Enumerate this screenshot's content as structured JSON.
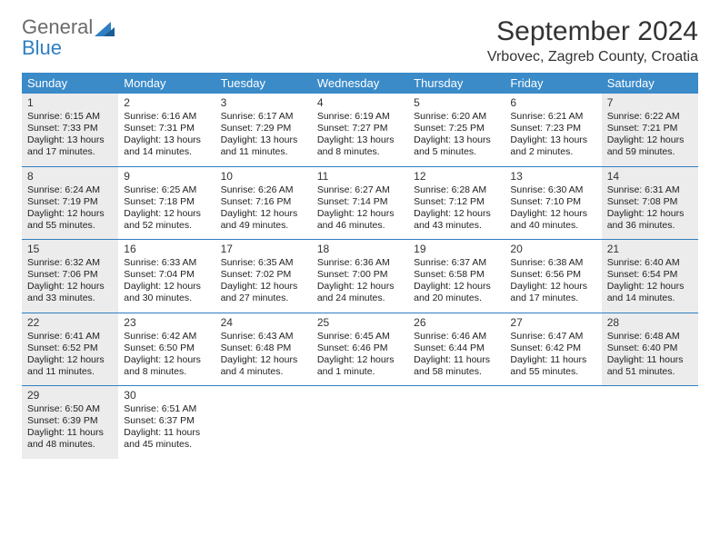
{
  "logo": {
    "line1": "General",
    "line2": "Blue"
  },
  "title": "September 2024",
  "location": "Vrbovec, Zagreb County, Croatia",
  "colors": {
    "header_bg": "#3b8bc9",
    "divider": "#2f7fc2",
    "shade": "#ececec",
    "logo_gray": "#6b6b6b",
    "logo_blue": "#2f7fc2"
  },
  "weekdays": [
    "Sunday",
    "Monday",
    "Tuesday",
    "Wednesday",
    "Thursday",
    "Friday",
    "Saturday"
  ],
  "weeks": [
    [
      {
        "num": "1",
        "shaded": true,
        "sunrise": "Sunrise: 6:15 AM",
        "sunset": "Sunset: 7:33 PM",
        "daylight1": "Daylight: 13 hours",
        "daylight2": "and 17 minutes."
      },
      {
        "num": "2",
        "shaded": false,
        "sunrise": "Sunrise: 6:16 AM",
        "sunset": "Sunset: 7:31 PM",
        "daylight1": "Daylight: 13 hours",
        "daylight2": "and 14 minutes."
      },
      {
        "num": "3",
        "shaded": false,
        "sunrise": "Sunrise: 6:17 AM",
        "sunset": "Sunset: 7:29 PM",
        "daylight1": "Daylight: 13 hours",
        "daylight2": "and 11 minutes."
      },
      {
        "num": "4",
        "shaded": false,
        "sunrise": "Sunrise: 6:19 AM",
        "sunset": "Sunset: 7:27 PM",
        "daylight1": "Daylight: 13 hours",
        "daylight2": "and 8 minutes."
      },
      {
        "num": "5",
        "shaded": false,
        "sunrise": "Sunrise: 6:20 AM",
        "sunset": "Sunset: 7:25 PM",
        "daylight1": "Daylight: 13 hours",
        "daylight2": "and 5 minutes."
      },
      {
        "num": "6",
        "shaded": false,
        "sunrise": "Sunrise: 6:21 AM",
        "sunset": "Sunset: 7:23 PM",
        "daylight1": "Daylight: 13 hours",
        "daylight2": "and 2 minutes."
      },
      {
        "num": "7",
        "shaded": true,
        "sunrise": "Sunrise: 6:22 AM",
        "sunset": "Sunset: 7:21 PM",
        "daylight1": "Daylight: 12 hours",
        "daylight2": "and 59 minutes."
      }
    ],
    [
      {
        "num": "8",
        "shaded": true,
        "sunrise": "Sunrise: 6:24 AM",
        "sunset": "Sunset: 7:19 PM",
        "daylight1": "Daylight: 12 hours",
        "daylight2": "and 55 minutes."
      },
      {
        "num": "9",
        "shaded": false,
        "sunrise": "Sunrise: 6:25 AM",
        "sunset": "Sunset: 7:18 PM",
        "daylight1": "Daylight: 12 hours",
        "daylight2": "and 52 minutes."
      },
      {
        "num": "10",
        "shaded": false,
        "sunrise": "Sunrise: 6:26 AM",
        "sunset": "Sunset: 7:16 PM",
        "daylight1": "Daylight: 12 hours",
        "daylight2": "and 49 minutes."
      },
      {
        "num": "11",
        "shaded": false,
        "sunrise": "Sunrise: 6:27 AM",
        "sunset": "Sunset: 7:14 PM",
        "daylight1": "Daylight: 12 hours",
        "daylight2": "and 46 minutes."
      },
      {
        "num": "12",
        "shaded": false,
        "sunrise": "Sunrise: 6:28 AM",
        "sunset": "Sunset: 7:12 PM",
        "daylight1": "Daylight: 12 hours",
        "daylight2": "and 43 minutes."
      },
      {
        "num": "13",
        "shaded": false,
        "sunrise": "Sunrise: 6:30 AM",
        "sunset": "Sunset: 7:10 PM",
        "daylight1": "Daylight: 12 hours",
        "daylight2": "and 40 minutes."
      },
      {
        "num": "14",
        "shaded": true,
        "sunrise": "Sunrise: 6:31 AM",
        "sunset": "Sunset: 7:08 PM",
        "daylight1": "Daylight: 12 hours",
        "daylight2": "and 36 minutes."
      }
    ],
    [
      {
        "num": "15",
        "shaded": true,
        "sunrise": "Sunrise: 6:32 AM",
        "sunset": "Sunset: 7:06 PM",
        "daylight1": "Daylight: 12 hours",
        "daylight2": "and 33 minutes."
      },
      {
        "num": "16",
        "shaded": false,
        "sunrise": "Sunrise: 6:33 AM",
        "sunset": "Sunset: 7:04 PM",
        "daylight1": "Daylight: 12 hours",
        "daylight2": "and 30 minutes."
      },
      {
        "num": "17",
        "shaded": false,
        "sunrise": "Sunrise: 6:35 AM",
        "sunset": "Sunset: 7:02 PM",
        "daylight1": "Daylight: 12 hours",
        "daylight2": "and 27 minutes."
      },
      {
        "num": "18",
        "shaded": false,
        "sunrise": "Sunrise: 6:36 AM",
        "sunset": "Sunset: 7:00 PM",
        "daylight1": "Daylight: 12 hours",
        "daylight2": "and 24 minutes."
      },
      {
        "num": "19",
        "shaded": false,
        "sunrise": "Sunrise: 6:37 AM",
        "sunset": "Sunset: 6:58 PM",
        "daylight1": "Daylight: 12 hours",
        "daylight2": "and 20 minutes."
      },
      {
        "num": "20",
        "shaded": false,
        "sunrise": "Sunrise: 6:38 AM",
        "sunset": "Sunset: 6:56 PM",
        "daylight1": "Daylight: 12 hours",
        "daylight2": "and 17 minutes."
      },
      {
        "num": "21",
        "shaded": true,
        "sunrise": "Sunrise: 6:40 AM",
        "sunset": "Sunset: 6:54 PM",
        "daylight1": "Daylight: 12 hours",
        "daylight2": "and 14 minutes."
      }
    ],
    [
      {
        "num": "22",
        "shaded": true,
        "sunrise": "Sunrise: 6:41 AM",
        "sunset": "Sunset: 6:52 PM",
        "daylight1": "Daylight: 12 hours",
        "daylight2": "and 11 minutes."
      },
      {
        "num": "23",
        "shaded": false,
        "sunrise": "Sunrise: 6:42 AM",
        "sunset": "Sunset: 6:50 PM",
        "daylight1": "Daylight: 12 hours",
        "daylight2": "and 8 minutes."
      },
      {
        "num": "24",
        "shaded": false,
        "sunrise": "Sunrise: 6:43 AM",
        "sunset": "Sunset: 6:48 PM",
        "daylight1": "Daylight: 12 hours",
        "daylight2": "and 4 minutes."
      },
      {
        "num": "25",
        "shaded": false,
        "sunrise": "Sunrise: 6:45 AM",
        "sunset": "Sunset: 6:46 PM",
        "daylight1": "Daylight: 12 hours",
        "daylight2": "and 1 minute."
      },
      {
        "num": "26",
        "shaded": false,
        "sunrise": "Sunrise: 6:46 AM",
        "sunset": "Sunset: 6:44 PM",
        "daylight1": "Daylight: 11 hours",
        "daylight2": "and 58 minutes."
      },
      {
        "num": "27",
        "shaded": false,
        "sunrise": "Sunrise: 6:47 AM",
        "sunset": "Sunset: 6:42 PM",
        "daylight1": "Daylight: 11 hours",
        "daylight2": "and 55 minutes."
      },
      {
        "num": "28",
        "shaded": true,
        "sunrise": "Sunrise: 6:48 AM",
        "sunset": "Sunset: 6:40 PM",
        "daylight1": "Daylight: 11 hours",
        "daylight2": "and 51 minutes."
      }
    ],
    [
      {
        "num": "29",
        "shaded": true,
        "sunrise": "Sunrise: 6:50 AM",
        "sunset": "Sunset: 6:39 PM",
        "daylight1": "Daylight: 11 hours",
        "daylight2": "and 48 minutes."
      },
      {
        "num": "30",
        "shaded": false,
        "sunrise": "Sunrise: 6:51 AM",
        "sunset": "Sunset: 6:37 PM",
        "daylight1": "Daylight: 11 hours",
        "daylight2": "and 45 minutes."
      },
      {
        "empty": true
      },
      {
        "empty": true
      },
      {
        "empty": true
      },
      {
        "empty": true
      },
      {
        "empty": true
      }
    ]
  ]
}
